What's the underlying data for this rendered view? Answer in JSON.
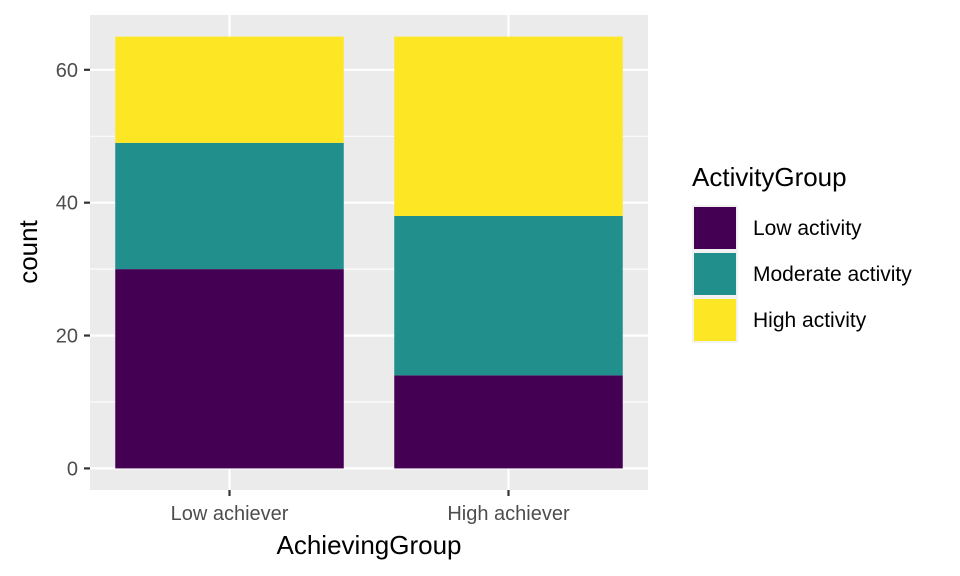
{
  "chart_data": {
    "type": "bar",
    "stacked": true,
    "categories": [
      "Low achiever",
      "High achiever"
    ],
    "series": [
      {
        "name": "Low activity",
        "values": [
          30,
          14
        ],
        "color": "#440154"
      },
      {
        "name": "Moderate activity",
        "values": [
          19,
          24
        ],
        "color": "#21908C"
      },
      {
        "name": "High activity",
        "values": [
          16,
          27
        ],
        "color": "#FDE725"
      }
    ],
    "xlabel": "AchievingGroup",
    "ylabel": "count",
    "ylim": [
      -3.25,
      68.25
    ],
    "yticks": [
      0,
      20,
      40,
      60
    ],
    "grid": true,
    "legend": {
      "title": "ActivityGroup",
      "placement": "right"
    },
    "panel_background": "#EBEBEB"
  }
}
